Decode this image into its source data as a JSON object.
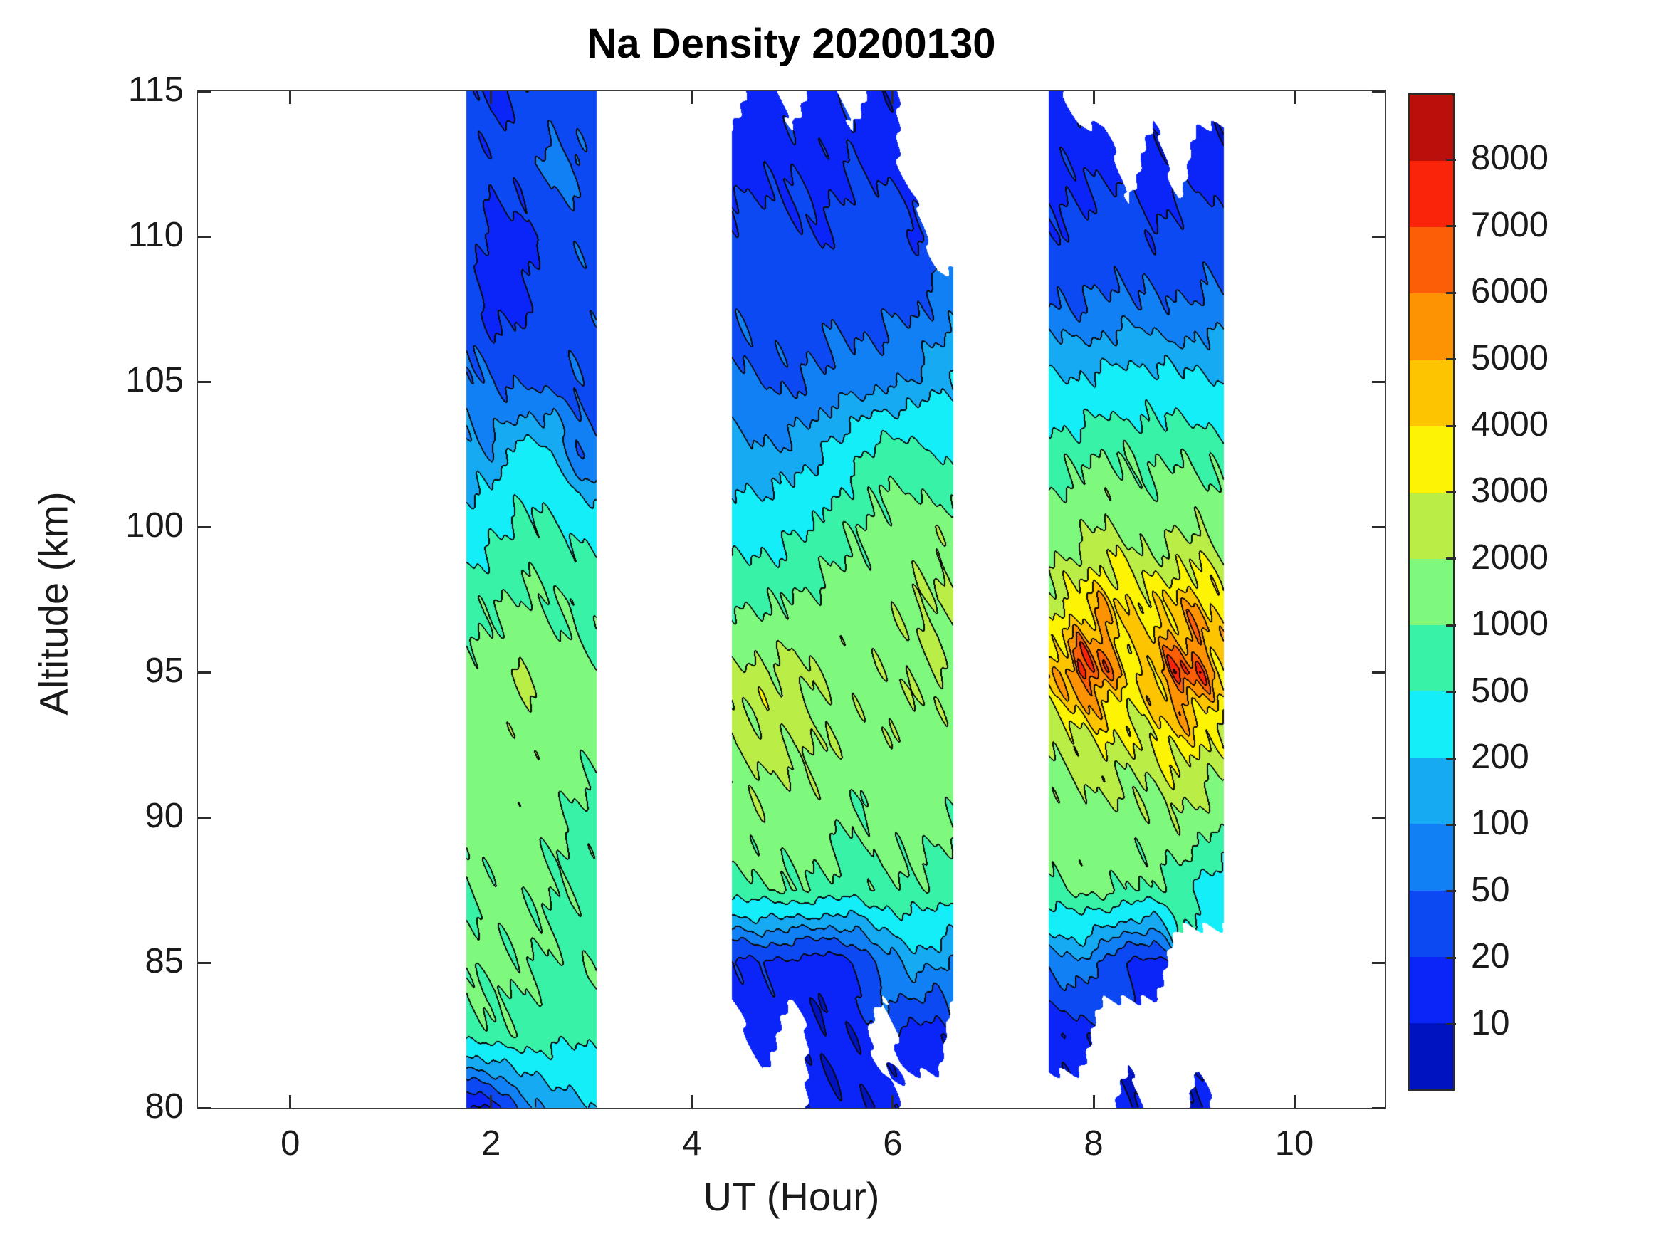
{
  "title": "Na Density 20200130",
  "x_axis": {
    "label": "UT (Hour)",
    "ticks": [
      0,
      2,
      4,
      6,
      8,
      10
    ],
    "range": [
      -0.92,
      10.9
    ]
  },
  "y_axis": {
    "label": "Altitude (km)",
    "ticks": [
      80,
      85,
      90,
      95,
      100,
      105,
      110,
      115
    ],
    "range": [
      80,
      115
    ]
  },
  "colorbar": {
    "tick_labels": [
      "10",
      "20",
      "50",
      "100",
      "200",
      "500",
      "1000",
      "2000",
      "3000",
      "4000",
      "5000",
      "6000",
      "7000",
      "8000"
    ],
    "orientation": "vertical-right"
  },
  "chart_data": {
    "type": "heatmap",
    "subtype": "filled-contour",
    "title": "Na Density 20200130",
    "xlabel": "UT (Hour)",
    "ylabel": "Altitude (km)",
    "xlim": [
      -0.92,
      10.9
    ],
    "ylim": [
      80,
      115
    ],
    "grid": false,
    "legend_position": "colorbar-right",
    "levels": [
      10,
      20,
      50,
      100,
      200,
      500,
      1000,
      2000,
      3000,
      4000,
      5000,
      6000,
      7000,
      8000
    ],
    "band_colors_low_to_high": [
      "#0013c0",
      "#0b24f7",
      "#0d49f2",
      "#1180f5",
      "#15aaf2",
      "#14eef8",
      "#38f3a7",
      "#7ff87e",
      "#baee47",
      "#fcf403",
      "#fdc401",
      "#fd9303",
      "#fa5e06",
      "#f9240a",
      "#ba100b"
    ],
    "no_data_color": "#ffffff",
    "contour_line_color": "#000000",
    "altitudes_km": [
      115,
      112.5,
      110,
      107.5,
      105,
      102.5,
      100,
      97.5,
      95,
      92.5,
      90,
      87.5,
      85,
      82.5,
      80
    ],
    "strips": [
      {
        "name": "observation-period-1",
        "hours": [
          1.75,
          2.0,
          2.3,
          2.6,
          2.85,
          3.05
        ],
        "values": [
          [
            30,
            15,
            20,
            30,
            25,
            30
          ],
          [
            30,
            25,
            30,
            70,
            60,
            30
          ],
          [
            30,
            15,
            15,
            30,
            40,
            40
          ],
          [
            35,
            15,
            15,
            35,
            40,
            40
          ],
          [
            70,
            50,
            40,
            40,
            45,
            35
          ],
          [
            120,
            110,
            300,
            250,
            60,
            50
          ],
          [
            300,
            400,
            600,
            550,
            420,
            350
          ],
          [
            700,
            900,
            1100,
            1000,
            800,
            700
          ],
          [
            1200,
            1400,
            2100,
            1500,
            1300,
            1200
          ],
          [
            1300,
            1500,
            1700,
            1500,
            1300,
            1200
          ],
          [
            1200,
            1400,
            1500,
            1200,
            900,
            800
          ],
          [
            1000,
            1200,
            1300,
            1000,
            800,
            700
          ],
          [
            1100,
            1200,
            1100,
            900,
            800,
            1100
          ],
          [
            700,
            900,
            800,
            700,
            600,
            600
          ],
          [
            8,
            12,
            60,
            120,
            150,
            180
          ]
        ]
      },
      {
        "name": "observation-period-2",
        "hours": [
          4.4,
          4.7,
          5.0,
          5.3,
          5.6,
          5.9,
          6.2,
          6.45,
          6.6
        ],
        "values": [
          [
            null,
            12,
            null,
            15,
            null,
            12,
            null,
            null,
            null
          ],
          [
            15,
            15,
            18,
            15,
            20,
            15,
            null,
            null,
            null
          ],
          [
            25,
            30,
            25,
            20,
            30,
            35,
            20,
            null,
            null
          ],
          [
            40,
            35,
            30,
            40,
            35,
            40,
            45,
            60,
            80
          ],
          [
            60,
            50,
            45,
            60,
            70,
            80,
            100,
            180,
            220
          ],
          [
            120,
            110,
            130,
            200,
            400,
            800,
            700,
            500,
            400
          ],
          [
            300,
            350,
            400,
            600,
            900,
            1300,
            1500,
            1600,
            1500
          ],
          [
            800,
            900,
            1000,
            1200,
            1400,
            1600,
            1800,
            2200,
            1900
          ],
          [
            2200,
            2400,
            2400,
            1800,
            1600,
            1700,
            1800,
            2100,
            1700
          ],
          [
            2100,
            2400,
            2200,
            1900,
            1600,
            1700,
            1600,
            1500,
            1400
          ],
          [
            1500,
            1600,
            1500,
            1400,
            900,
            1500,
            1300,
            1200,
            1100
          ],
          [
            800,
            900,
            1000,
            900,
            700,
            1000,
            900,
            800,
            700
          ],
          [
            15,
            20,
            15,
            12,
            18,
            60,
            150,
            120,
            80
          ],
          [
            null,
            12,
            null,
            11,
            12,
            null,
            15,
            12,
            null
          ],
          [
            null,
            null,
            null,
            11,
            12,
            11,
            null,
            null,
            null
          ]
        ]
      },
      {
        "name": "observation-period-3",
        "hours": [
          7.55,
          7.85,
          8.1,
          8.35,
          8.6,
          8.85,
          9.05,
          9.3
        ],
        "values": [
          [
            12,
            null,
            null,
            null,
            null,
            null,
            null,
            null
          ],
          [
            15,
            18,
            15,
            null,
            12,
            null,
            15,
            12
          ],
          [
            20,
            25,
            30,
            25,
            20,
            25,
            30,
            25
          ],
          [
            60,
            50,
            60,
            70,
            60,
            50,
            60,
            70
          ],
          [
            250,
            220,
            250,
            300,
            280,
            250,
            220,
            200
          ],
          [
            700,
            800,
            1100,
            900,
            800,
            1000,
            900,
            700
          ],
          [
            1300,
            1600,
            2200,
            1800,
            1500,
            1800,
            2000,
            1500
          ],
          [
            2500,
            3500,
            4500,
            3800,
            3500,
            4200,
            4500,
            3500
          ],
          [
            4000,
            7200,
            6500,
            3500,
            5000,
            6800,
            6500,
            4500
          ],
          [
            2000,
            2600,
            3200,
            2600,
            3000,
            3800,
            3200,
            2600
          ],
          [
            1400,
            1600,
            1800,
            1500,
            1600,
            2000,
            1700,
            1300
          ],
          [
            900,
            1100,
            1200,
            1000,
            900,
            700,
            400,
            250
          ],
          [
            60,
            100,
            40,
            20,
            15,
            null,
            null,
            null
          ],
          [
            11,
            12,
            null,
            null,
            null,
            null,
            null,
            null
          ],
          [
            null,
            null,
            null,
            10,
            null,
            null,
            10,
            null
          ]
        ]
      }
    ]
  }
}
